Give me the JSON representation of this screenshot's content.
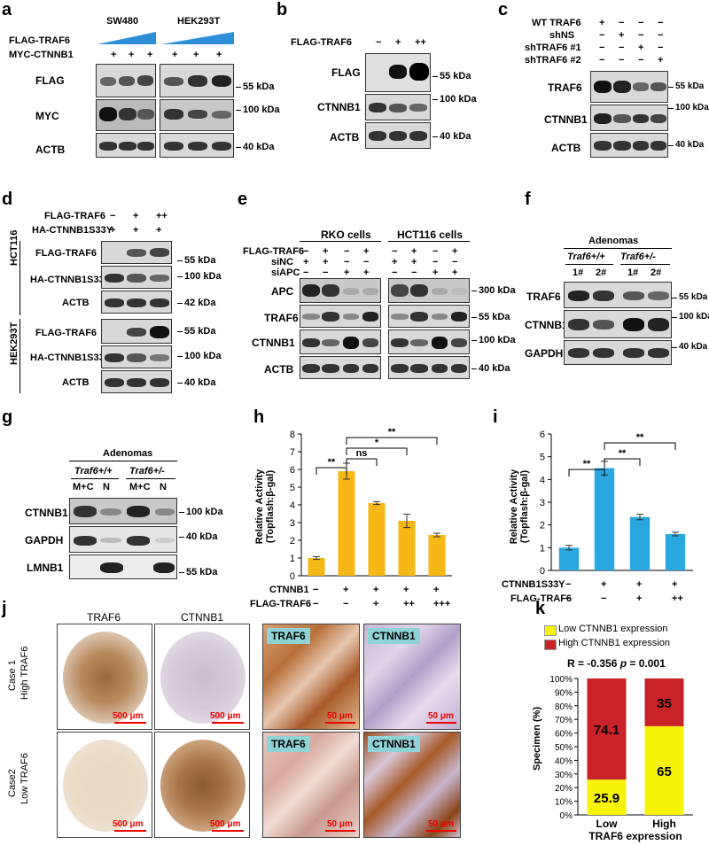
{
  "panels": {
    "a": "a",
    "b": "b",
    "c": "c",
    "d": "d",
    "e": "e",
    "f": "f",
    "g": "g",
    "h": "h",
    "i": "i",
    "j": "j",
    "k": "k"
  },
  "a": {
    "cell1": "SW480",
    "cell2": "HEK293T",
    "row1": "FLAG-TRAF6",
    "row2": "MYC-CTNNB1",
    "plus": [
      "+",
      "+",
      "+",
      "+",
      "+",
      "+"
    ],
    "blots": [
      "FLAG",
      "MYC",
      "ACTB"
    ],
    "kda": [
      "55 kDa",
      "100 kDa",
      "40 kDa"
    ]
  },
  "b": {
    "row1": "FLAG-TRAF6",
    "signs": [
      "−",
      "+",
      "++"
    ],
    "blots": [
      "FLAG",
      "CTNNB1",
      "ACTB"
    ],
    "kda": [
      "55 kDa",
      "100 kDa",
      "40 kDa"
    ]
  },
  "c": {
    "rows": [
      "WT TRAF6",
      "shNS",
      "shTRAF6 #1",
      "shTRAF6 #2"
    ],
    "signs": [
      [
        "+",
        "−",
        "−",
        "−"
      ],
      [
        "−",
        "+",
        "−",
        "−"
      ],
      [
        "−",
        "−",
        "+",
        "−"
      ],
      [
        "−",
        "−",
        "−",
        "+"
      ]
    ],
    "blots": [
      "TRAF6",
      "CTNNB1",
      "ACTB"
    ],
    "kda": [
      "55 kDa",
      "100 kDa",
      "40 kDa"
    ]
  },
  "d": {
    "row1": "FLAG-TRAF6",
    "row2": "HA-CTNNB1S33Y",
    "signs1": [
      "−",
      "+",
      "++"
    ],
    "signs2": [
      "+",
      "+",
      "+"
    ],
    "group1": "HCT116",
    "group2": "HEK293T",
    "blots": [
      "FLAG-TRAF6",
      "HA-CTNNB1S33Y",
      "ACTB",
      "FLAG-TRAF6",
      "HA-CTNNB1S33Y",
      "ACTB"
    ],
    "kda": [
      "55 kDa",
      "100 kDa",
      "42 kDa",
      "55 kDa",
      "100 kDa",
      "40 kDa"
    ]
  },
  "e": {
    "cell1": "RKO  cells",
    "cell2": "HCT116  cells",
    "rows": [
      "FLAG-TRAF6",
      "siNC",
      "siAPC"
    ],
    "signs": [
      [
        "−",
        "+",
        "−",
        "+",
        "−",
        "+",
        "−",
        "+"
      ],
      [
        "+",
        "+",
        "−",
        "−",
        "+",
        "+",
        "−",
        "−"
      ],
      [
        "−",
        "−",
        "+",
        "+",
        "−",
        "−",
        "+",
        "+"
      ]
    ],
    "blots": [
      "APC",
      "TRAF6",
      "CTNNB1",
      "ACTB"
    ],
    "kda": [
      "300 kDa",
      "55 kDa",
      "100 kDa",
      "40 kDa"
    ]
  },
  "f": {
    "title": "Adenomas",
    "g1": "Traf6+/+",
    "g2": "Traf6+/-",
    "lanes": [
      "1#",
      "2#",
      "1#",
      "2#"
    ],
    "blots": [
      "TRAF6",
      "CTNNB1",
      "GAPDH"
    ],
    "kda": [
      "55 kDa",
      "100 kDa",
      "40 kDa"
    ]
  },
  "g": {
    "title": "Adenomas",
    "g1": "Traf6+/+",
    "g2": "Traf6+/-",
    "lanes": [
      "M+C",
      "N",
      "M+C",
      "N"
    ],
    "blots": [
      "CTNNB1",
      "GAPDH",
      "LMNB1"
    ],
    "kda": [
      "100 kDa",
      "40 kDa",
      "55 kDa"
    ]
  },
  "h": {
    "rows": [
      "CTNNB1",
      "FLAG-TRAF6"
    ],
    "signs": [
      [
        "−",
        "+",
        "+",
        "+",
        "+"
      ],
      [
        "−",
        "−",
        "+",
        "++",
        "+++"
      ]
    ],
    "sig": [
      "**",
      "ns",
      "*",
      "**"
    ]
  },
  "i": {
    "rows": [
      "CTNNB1S33Y",
      "FLAG-TRAF6"
    ],
    "signs": [
      [
        "−",
        "+",
        "+",
        "+"
      ],
      [
        "−",
        "−",
        "+",
        "++"
      ]
    ],
    "sig": [
      "**",
      "**",
      "**"
    ]
  },
  "j": {
    "col1": "TRAF6",
    "col2": "CTNNB1",
    "case1": "Case 1",
    "case1b": "High TRAF6",
    "case2": "Case2",
    "case2b": "Low TRAF6",
    "scale": "500 μm",
    "scale2": "50 μm",
    "tags": [
      "TRAF6",
      "CTNNB1",
      "TRAF6",
      "CTNNB1"
    ]
  },
  "k": {
    "legend1": "Low CTNNB1 expression",
    "legend2": "High CTNNB1 expression",
    "stat_r": "R = -0.356",
    "stat_p_label": "p",
    "stat_p_val": "= 0.001"
  },
  "chart_data": [
    {
      "type": "bar",
      "panel": "h",
      "categories": [
        "1",
        "2",
        "3",
        "4",
        "5"
      ],
      "values": [
        1.0,
        5.9,
        4.1,
        3.1,
        2.3
      ],
      "errors": [
        0.08,
        0.45,
        0.08,
        0.38,
        0.1
      ],
      "xlabel": "",
      "ylabel": "Relative Activity (Topflash:β-gal)",
      "ylim": [
        0,
        8
      ],
      "yticks": [
        0,
        1,
        2,
        3,
        4,
        5,
        6,
        7,
        8
      ],
      "color": "#f5b817"
    },
    {
      "type": "bar",
      "panel": "i",
      "categories": [
        "1",
        "2",
        "3",
        "4"
      ],
      "values": [
        1.0,
        4.5,
        2.35,
        1.6
      ],
      "errors": [
        0.1,
        0.3,
        0.12,
        0.08
      ],
      "xlabel": "",
      "ylabel": "Relative Activity (Topflash:β-gal)",
      "ylim": [
        0,
        6
      ],
      "yticks": [
        0,
        1,
        2,
        3,
        4,
        5,
        6
      ],
      "color": "#2aa7df"
    },
    {
      "type": "bar",
      "panel": "k",
      "stacked": true,
      "categories": [
        "Low",
        "High"
      ],
      "xlabel": "TRAF6 expression",
      "ylabel": "Specimen (%)",
      "ylim": [
        0,
        100
      ],
      "yticks": [
        "0%",
        "10%",
        "20%",
        "30%",
        "40%",
        "50%",
        "60%",
        "70%",
        "80%",
        "90%",
        "100%"
      ],
      "series": [
        {
          "name": "Low CTNNB1 expression",
          "values": [
            25.9,
            65
          ],
          "color": "#f7f20a"
        },
        {
          "name": "High CTNNB1 expression",
          "values": [
            74.1,
            35
          ],
          "color": "#c9232a"
        }
      ]
    }
  ]
}
